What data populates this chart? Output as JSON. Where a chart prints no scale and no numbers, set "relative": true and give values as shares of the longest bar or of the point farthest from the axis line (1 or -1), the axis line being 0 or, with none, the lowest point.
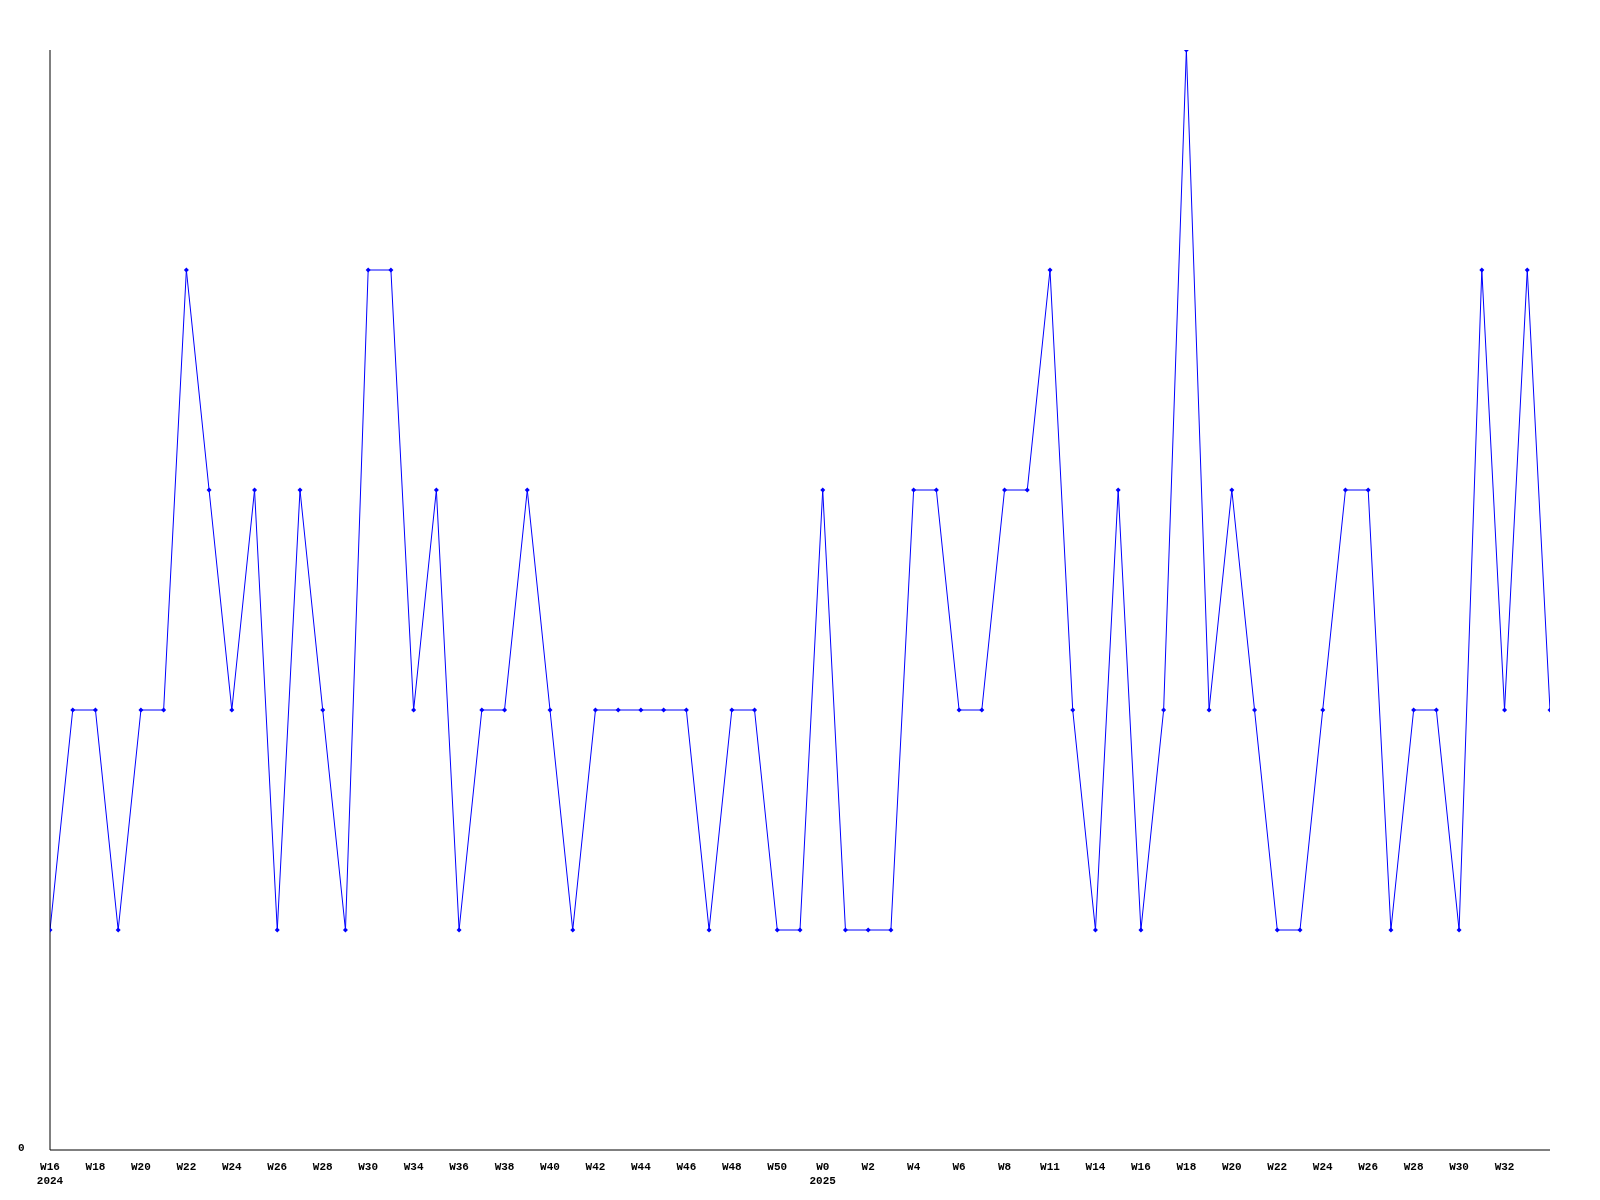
{
  "chart_data": {
    "type": "line",
    "relative": true,
    "annotations": [
      "0"
    ],
    "marker": "diamond",
    "legend": false,
    "categories": [
      "W16\n2024",
      null,
      "W18",
      null,
      "W20",
      null,
      "W22",
      null,
      "W24",
      null,
      "W26",
      null,
      "W28",
      null,
      "W30",
      null,
      "W34",
      null,
      "W36",
      null,
      "W38",
      null,
      "W40",
      null,
      "W42",
      null,
      "W44",
      null,
      "W46",
      null,
      "W48",
      null,
      "W50",
      null,
      "W0\n2025",
      null,
      "W2",
      null,
      "W4",
      null,
      "W6",
      null,
      "W8",
      null,
      "W11",
      null,
      "W14",
      null,
      "W16",
      null,
      "W18",
      null,
      "W20",
      null,
      "W22",
      null,
      "W24",
      null,
      "W26",
      null,
      "W28",
      null,
      "W30",
      null,
      "W32",
      null,
      null
    ],
    "series": [
      {
        "color": "#0000ff",
        "values": [
          0.2,
          0.4,
          0.4,
          0.2,
          0.4,
          0.4,
          0.8,
          0.6,
          0.4,
          0.6,
          0.2,
          0.6,
          0.4,
          0.2,
          0.8,
          0.8,
          0.4,
          0.6,
          0.2,
          0.4,
          0.4,
          0.6,
          0.4,
          0.2,
          0.4,
          0.4,
          0.4,
          0.4,
          0.4,
          0.2,
          0.4,
          0.4,
          0.2,
          0.2,
          0.6,
          0.2,
          0.2,
          0.2,
          0.6,
          0.6,
          0.4,
          0.4,
          0.6,
          0.6,
          0.8,
          0.4,
          0.2,
          0.6,
          0.2,
          0.4,
          1,
          0.4,
          0.6,
          0.4,
          0.2,
          0.2,
          0.4,
          0.6,
          0.6,
          0.2,
          0.4,
          0.4,
          0.2,
          0.8,
          0.4,
          0.8,
          0.4
        ]
      }
    ]
  }
}
